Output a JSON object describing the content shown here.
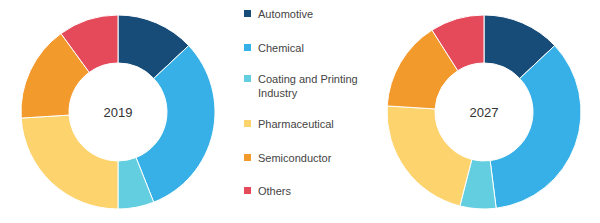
{
  "chart_data": [
    {
      "type": "donut",
      "title": "2019",
      "categories": [
        "Automotive",
        "Chemical",
        "Coating and Printing Industry",
        "Pharmaceutical",
        "Semiconductor",
        "Others"
      ],
      "values": [
        13,
        31,
        6,
        24,
        16,
        10
      ],
      "colors": [
        "#174c78",
        "#36b0e6",
        "#62cee0",
        "#fdd36e",
        "#f39a2c",
        "#e54a5b"
      ]
    },
    {
      "type": "donut",
      "title": "2027",
      "categories": [
        "Automotive",
        "Chemical",
        "Coating and Printing Industry",
        "Pharmaceutical",
        "Semiconductor",
        "Others"
      ],
      "values": [
        13,
        35,
        6,
        22,
        15,
        9
      ],
      "colors": [
        "#174c78",
        "#36b0e6",
        "#62cee0",
        "#fdd36e",
        "#f39a2c",
        "#e54a5b"
      ]
    }
  ]
}
